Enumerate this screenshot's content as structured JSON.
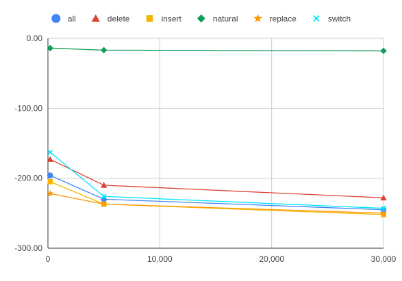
{
  "chart_data": {
    "type": "line",
    "title": "",
    "xlabel": "",
    "ylabel": "",
    "xlim": [
      0,
      30000
    ],
    "ylim": [
      -300,
      0
    ],
    "x_ticks": [
      0,
      10000,
      20000,
      30000
    ],
    "x_tick_labels": [
      "0",
      "10,000",
      "20,000",
      "30,000"
    ],
    "y_ticks": [
      0,
      -100,
      -200,
      -300
    ],
    "y_tick_labels": [
      "0.00",
      "-100.00",
      "-200.00",
      "-300.00"
    ],
    "grid": true,
    "legend_position": "top",
    "x": [
      200,
      5000,
      30000
    ],
    "series": [
      {
        "name": "all",
        "color": "#4285f4",
        "marker": "circle",
        "values": [
          -196,
          -230,
          -245
        ]
      },
      {
        "name": "delete",
        "color": "#db4437",
        "marker": "triangle",
        "values": [
          -173,
          -210,
          -228
        ]
      },
      {
        "name": "insert",
        "color": "#f4b400",
        "marker": "square",
        "values": [
          -205,
          -237,
          -252
        ]
      },
      {
        "name": "natural",
        "color": "#0f9d58",
        "marker": "diamond",
        "values": [
          -14,
          -17,
          -18
        ]
      },
      {
        "name": "replace",
        "color": "#ff9900",
        "marker": "star",
        "values": [
          -222,
          -237,
          -250
        ]
      },
      {
        "name": "switch",
        "color": "#00e5ff",
        "marker": "x",
        "values": [
          -163,
          -226,
          -243
        ]
      }
    ]
  }
}
